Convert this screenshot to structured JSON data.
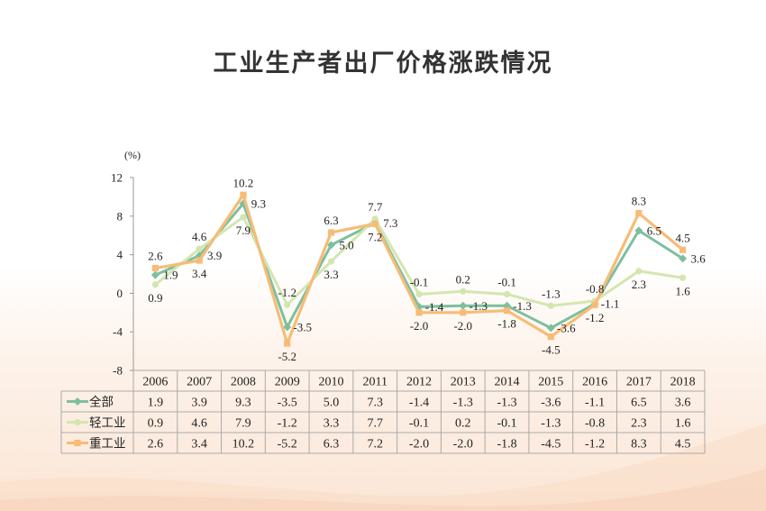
{
  "title": "工业生产者出厂价格涨跌情况",
  "chart_data": {
    "type": "line",
    "title": "工业生产者出厂价格涨跌情况",
    "ylabel": "(%)",
    "ylim": [
      -8,
      12
    ],
    "yticks": [
      12,
      8,
      4,
      0,
      -4,
      -8
    ],
    "categories": [
      "2006",
      "2007",
      "2008",
      "2009",
      "2010",
      "2011",
      "2012",
      "2013",
      "2014",
      "2015",
      "2016",
      "2017",
      "2018"
    ],
    "series": [
      {
        "name": "全部",
        "color": "#7dbf9f",
        "values": [
          1.9,
          3.9,
          9.3,
          -3.5,
          5.0,
          7.3,
          -1.4,
          -1.3,
          -1.3,
          -3.6,
          -1.1,
          6.5,
          3.6
        ],
        "labels": [
          "1.9",
          "3.9",
          "9.3",
          "-3.5",
          "5.0",
          "7.3",
          "-1.4",
          "-1.3",
          "-1.3",
          "-3.6",
          "-1.1",
          "6.5",
          "3.6"
        ]
      },
      {
        "name": "轻工业",
        "color": "#d3e6b0",
        "values": [
          0.9,
          4.6,
          7.9,
          -1.2,
          3.3,
          7.7,
          -0.1,
          0.2,
          -0.1,
          -1.3,
          -0.8,
          2.3,
          1.6
        ],
        "labels": [
          "0.9",
          "4.6",
          "7.9",
          "-1.2",
          "3.3",
          "7.7",
          "-0.1",
          "0.2",
          "-0.1",
          "-1.3",
          "-0.8",
          "2.3",
          "1.6"
        ]
      },
      {
        "name": "重工业",
        "color": "#f6bc77",
        "values": [
          2.6,
          3.4,
          10.2,
          -5.2,
          6.3,
          7.2,
          -2.0,
          -2.0,
          -1.8,
          -4.5,
          -1.2,
          8.3,
          4.5
        ],
        "labels": [
          "2.6",
          "3.4",
          "10.2",
          "-5.2",
          "6.3",
          "7.2",
          "-2.0",
          "-2.0",
          "-1.8",
          "-4.5",
          "-1.2",
          "8.3",
          "4.5"
        ]
      }
    ],
    "data_table": true
  }
}
